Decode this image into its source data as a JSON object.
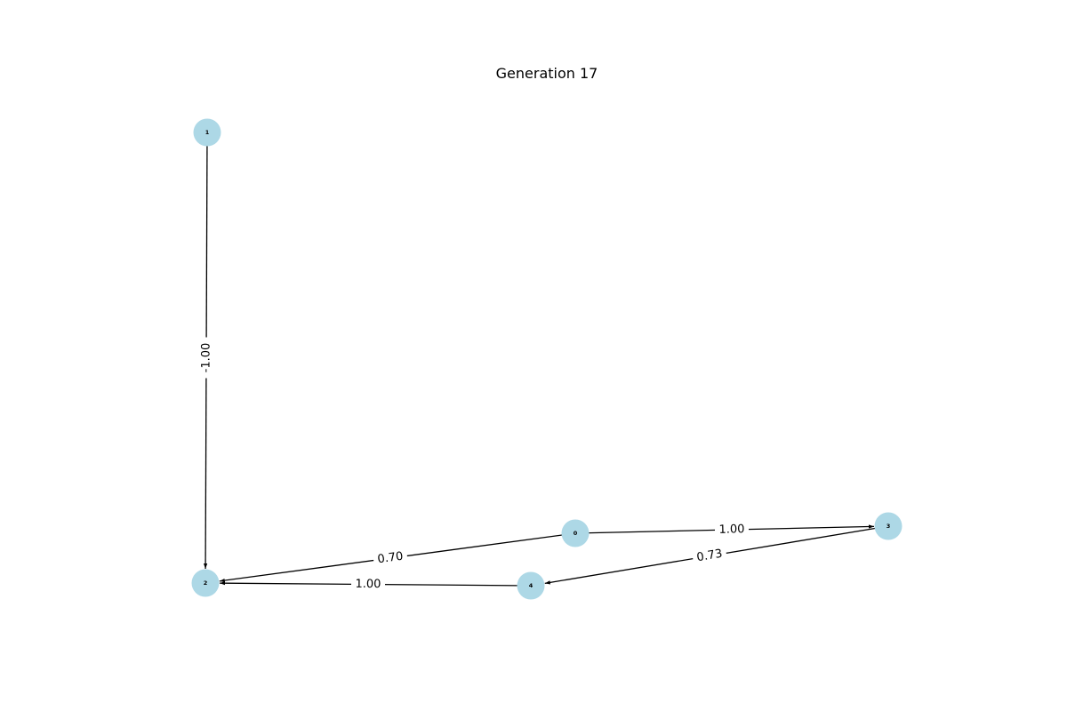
{
  "title": "Generation 17",
  "colors": {
    "node_fill": "#add8e6",
    "edge": "#000000",
    "text": "#000000"
  },
  "nodes": [
    {
      "id": "0",
      "label": "0"
    },
    {
      "id": "1",
      "label": "1"
    },
    {
      "id": "2",
      "label": "2"
    },
    {
      "id": "3",
      "label": "3"
    },
    {
      "id": "4",
      "label": "4"
    }
  ],
  "edges": [
    {
      "from": "1",
      "to": "2",
      "weight": "-1.00"
    },
    {
      "from": "0",
      "to": "3",
      "weight": "1.00"
    },
    {
      "from": "0",
      "to": "2",
      "weight": "0.70"
    },
    {
      "from": "3",
      "to": "4",
      "weight": "0.73"
    },
    {
      "from": "4",
      "to": "2",
      "weight": "1.00"
    }
  ]
}
